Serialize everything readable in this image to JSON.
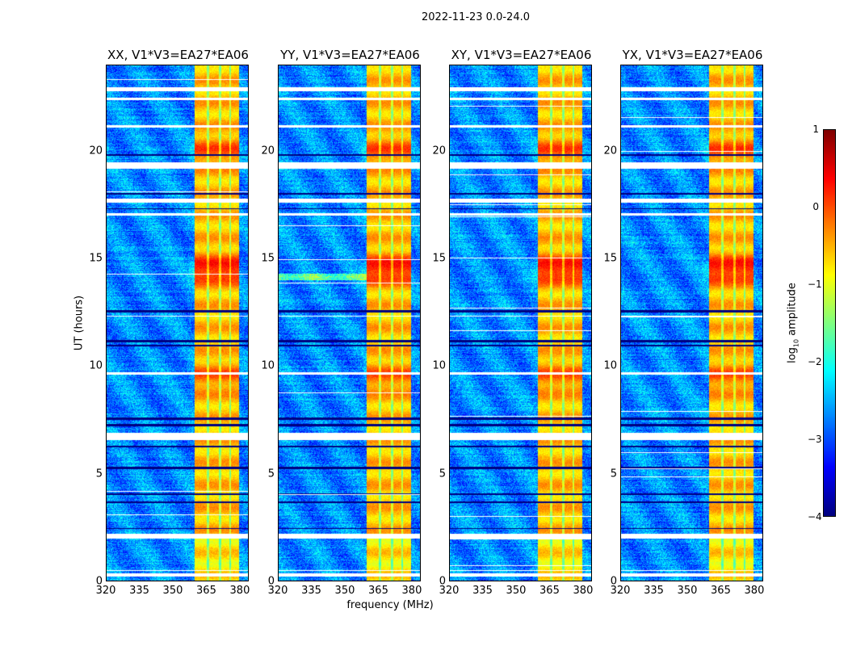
{
  "suptitle": "2022-11-23 0.0-24.0",
  "chart_data": {
    "type": "heatmap",
    "title": "2022-11-23 0.0-24.0",
    "xlabel": "frequency (MHz)",
    "ylabel": "UT (hours)",
    "xlim": [
      320,
      384
    ],
    "ylim": [
      0,
      24
    ],
    "xticks": [
      "320",
      "335",
      "350",
      "365",
      "380"
    ],
    "xtick_values": [
      320,
      335,
      350,
      365,
      380
    ],
    "yticks": [
      "0",
      "5",
      "10",
      "15",
      "20"
    ],
    "ytick_values": [
      0,
      5,
      10,
      15,
      20
    ],
    "panels": [
      {
        "title": "XX, V1*V3=EA27*EA06"
      },
      {
        "title": "YY, V1*V3=EA27*EA06"
      },
      {
        "title": "XY, V1*V3=EA27*EA06"
      },
      {
        "title": "YX, V1*V3=EA27*EA06"
      }
    ],
    "colorbar": {
      "label_main": "log",
      "label_sub": "10",
      "label_rest": " amplitude",
      "range": [
        -4,
        1
      ],
      "ticks": [
        "1",
        "0",
        "−1",
        "−2",
        "−3",
        "−4"
      ],
      "tick_values": [
        1,
        0,
        -1,
        -2,
        -3,
        -4
      ],
      "colormap": "jet"
    },
    "background_level": -2.7,
    "rfi_band_mhz": [
      360,
      380
    ],
    "rfi_subbands_mhz": [
      [
        360,
        365.5
      ],
      [
        366.5,
        371
      ],
      [
        372,
        375.5
      ],
      [
        376.5,
        380
      ]
    ],
    "rfi_band_level": -0.9,
    "rfi_peak_ut": [
      14.5,
      20.0,
      9.5
    ],
    "flagged_ut_ranges": [
      [
        0.2,
        0.35
      ],
      [
        0.45,
        0.5
      ],
      [
        1.95,
        2.2
      ],
      [
        6.55,
        6.9
      ],
      [
        9.6,
        9.7
      ],
      [
        12.3,
        12.35
      ],
      [
        17.0,
        17.1
      ],
      [
        17.6,
        17.8
      ],
      [
        19.2,
        19.5
      ],
      [
        21.1,
        21.2
      ],
      [
        22.4,
        22.5
      ],
      [
        22.8,
        23.0
      ]
    ],
    "lowgain_ut_ranges": [
      [
        2.4,
        2.45
      ],
      [
        3.6,
        3.7
      ],
      [
        4.0,
        4.05
      ],
      [
        5.2,
        5.3
      ],
      [
        6.2,
        6.3
      ],
      [
        7.2,
        7.3
      ],
      [
        7.5,
        7.6
      ],
      [
        10.9,
        11.0
      ],
      [
        11.1,
        11.2
      ],
      [
        12.5,
        12.6
      ],
      [
        17.3,
        17.35
      ],
      [
        18.0,
        18.05
      ],
      [
        19.8,
        19.85
      ]
    ]
  }
}
